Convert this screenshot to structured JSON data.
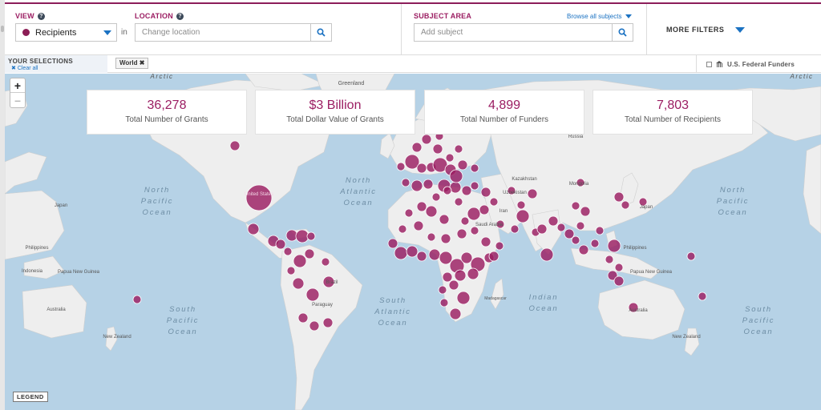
{
  "filters": {
    "view_label": "VIEW",
    "view_value": "Recipients",
    "in_label": "in",
    "location_label": "LOCATION",
    "location_placeholder": "Change location",
    "subject_label": "SUBJECT AREA",
    "browse_label": "Browse all subjects",
    "subject_placeholder": "Add subject",
    "more_filters_label": "MORE FILTERS",
    "accent_color": "#8b1d55",
    "link_color": "#1b72c2"
  },
  "selections": {
    "title": "YOUR SELECTIONS",
    "clear_label": "Clear all",
    "chips": [
      "World"
    ],
    "federal_funders_label": "U.S. Federal Funders"
  },
  "stats": [
    {
      "value": "36,278",
      "label": "Total Number of Grants"
    },
    {
      "value": "$3 Billion",
      "label": "Total Dollar Value of Grants"
    },
    {
      "value": "4,899",
      "label": "Total Number of Funders"
    },
    {
      "value": "7,803",
      "label": "Total Number of Recipients"
    }
  ],
  "map": {
    "ocean_labels": {
      "north_pacific_w": [
        "North",
        "Pacific",
        "Ocean"
      ],
      "north_atlantic": [
        "North",
        "Atlantic",
        "Ocean"
      ],
      "north_pacific_e": [
        "North",
        "Pacific",
        "Ocean"
      ],
      "south_pacific_w": [
        "South",
        "Pacific",
        "Ocean"
      ],
      "south_atlantic": [
        "South",
        "Atlantic",
        "Ocean"
      ],
      "indian": [
        "Indian",
        "Ocean"
      ],
      "south_pacific_e": [
        "South",
        "Pacific",
        "Ocean"
      ]
    },
    "place_labels": {
      "greenland": "Greenland",
      "arctic_w": "Arctic",
      "arctic_e": "Arctic",
      "japan_w": "Japan",
      "philippines_w": "Philippines",
      "indonesia_w": "Indonesia",
      "png_w": "Papua New Guinea",
      "australia_w": "Australia",
      "nz_w": "New Zealand",
      "brazil": "Brazil",
      "paraguay": "Paraguay",
      "kazakhstan": "Kazakhstan",
      "mongolia": "Mongolia",
      "uzbekistan": "Uzbekistan",
      "iran": "Iran",
      "saudi": "Saudi Arabia",
      "madagascar": "Madagascar",
      "philippines_e": "Philippines",
      "png_e": "Papua New Guinea",
      "australia_e": "Australia",
      "nz_e": "New Zealand",
      "russia": "Russia",
      "us": "United States",
      "japan_e": "Japan"
    },
    "zoom_in": "+",
    "zoom_out": "–",
    "land_color": "#eeeeee",
    "ocean_color": "#b6d2e6",
    "marker_color": "#9b1d62",
    "legend_label": "LEGEND"
  }
}
